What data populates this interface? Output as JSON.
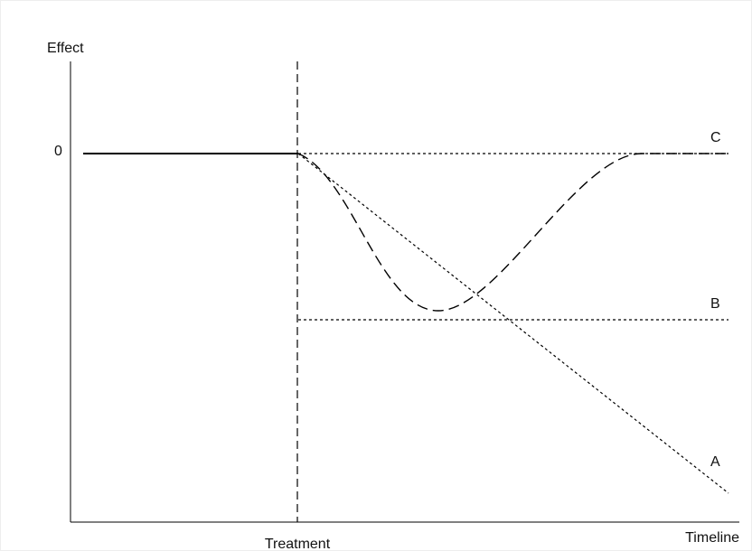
{
  "axes": {
    "y_label": "Effect",
    "x_label": "Timeline",
    "zero_label": "0"
  },
  "treatment": {
    "label": "Treatment"
  },
  "lines": [
    {
      "label": "A"
    },
    {
      "label": "B"
    },
    {
      "label": "C"
    }
  ]
}
